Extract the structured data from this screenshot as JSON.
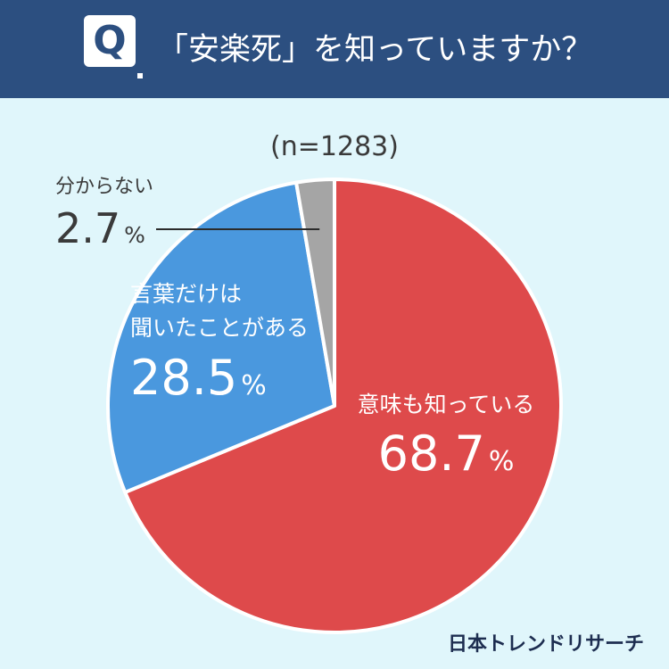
{
  "question": {
    "letter": "Q",
    "text": "「安楽死」を知っていますか？"
  },
  "brand": "日本トレンドリサーチ",
  "colors": {
    "header_bg": "#2c4f80",
    "page_bg": "#e0f6fb",
    "red": "#de4a4b",
    "blue": "#4a98de",
    "gray": "#a5a5a5",
    "dark_text": "#3a3a3a"
  },
  "chart_data": {
    "type": "pie",
    "sample_label": "(n=1283)",
    "start": "12 o'clock",
    "direction": "clockwise",
    "slices": [
      {
        "label": "意味も知っている",
        "value": 68.7,
        "display": "68.7",
        "unit": "%",
        "color": "#de4a4b"
      },
      {
        "label": "言葉だけは聞いたことがある",
        "label_lines": [
          "言葉だけは",
          "聞いたことがある"
        ],
        "value": 28.5,
        "display": "28.5",
        "unit": "%",
        "color": "#4a98de"
      },
      {
        "label": "分からない",
        "value": 2.7,
        "display": "2.7",
        "unit": "%",
        "color": "#a5a5a5"
      }
    ]
  }
}
